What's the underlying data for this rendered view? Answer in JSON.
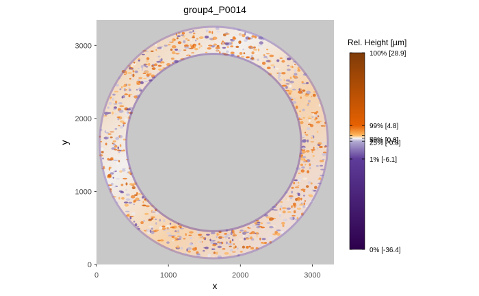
{
  "chart_data": {
    "type": "heatmap",
    "title": "group4_P0014",
    "xlabel": "x",
    "ylabel": "y",
    "xlim": [
      0,
      3300
    ],
    "ylim": [
      0,
      3350
    ],
    "x_ticks": [
      {
        "value": 0,
        "label": "0"
      },
      {
        "value": 1000,
        "label": "1000"
      },
      {
        "value": 2000,
        "label": "2000"
      },
      {
        "value": 3000,
        "label": "3000"
      }
    ],
    "y_ticks": [
      {
        "value": 0,
        "label": "0"
      },
      {
        "value": 1000,
        "label": "1000"
      },
      {
        "value": 2000,
        "label": "2000"
      },
      {
        "value": 3000,
        "label": "3000"
      }
    ],
    "panel_background": "#c8c8c8",
    "ring": {
      "center": [
        1630,
        1670
      ],
      "outer_radius": 1600,
      "inner_radius": 1200,
      "description_scale": "relative surface height"
    },
    "colorbar": {
      "title": "Rel. Height [µm]",
      "min": -36.4,
      "max": 28.9,
      "labels": [
        {
          "text": "100% [28.9]",
          "value": 28.9
        },
        {
          "text": "99% [4.8]",
          "value": 4.8
        },
        {
          "text": "75% [0.6]",
          "value": 0.6
        },
        {
          "text": "50% [0.3]",
          "value": 0.3
        },
        {
          "text": "25% [-0.8]",
          "value": -0.8
        },
        {
          "text": "1% [-6.1]",
          "value": -6.1
        },
        {
          "text": "0% [-36.4]",
          "value": -36.4
        }
      ],
      "gradient_stops": [
        {
          "value": -36.4,
          "color": "#2d004b"
        },
        {
          "value": -6.1,
          "color": "#5e3c99"
        },
        {
          "value": -0.8,
          "color": "#b2abd2"
        },
        {
          "value": 0.3,
          "color": "#f7f7f7"
        },
        {
          "value": 0.6,
          "color": "#fdb863"
        },
        {
          "value": 4.8,
          "color": "#e66101"
        },
        {
          "value": 28.9,
          "color": "#7f3b08"
        }
      ]
    }
  }
}
